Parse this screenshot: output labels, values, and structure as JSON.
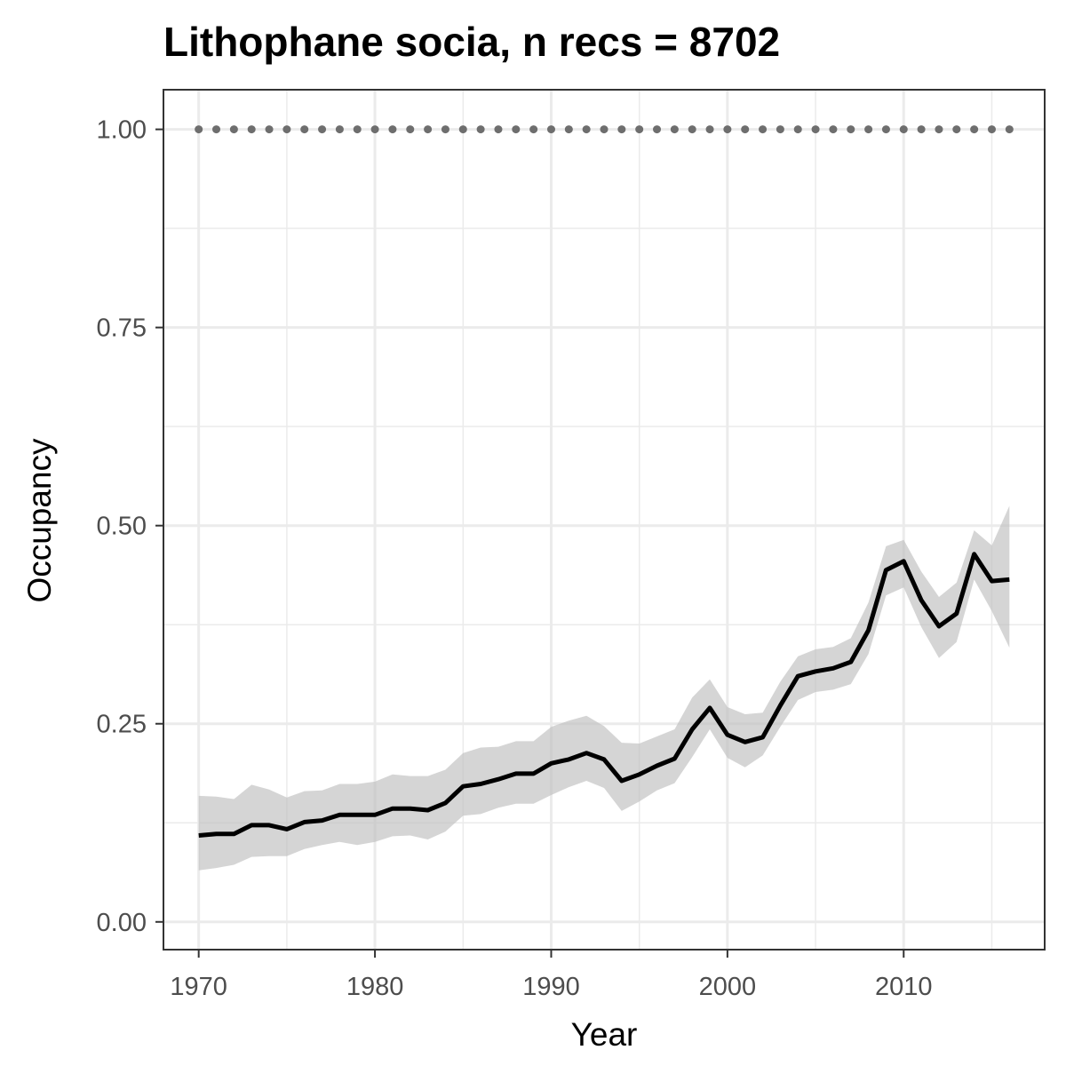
{
  "chart_data": {
    "type": "line",
    "title": "Lithophane socia, n recs = 8702",
    "xlabel": "Year",
    "ylabel": "Occupancy",
    "xlim": [
      1968,
      2018
    ],
    "ylim": [
      -0.035,
      1.05
    ],
    "x_ticks": [
      1970,
      1980,
      1990,
      2000,
      2010
    ],
    "x_tick_labels": [
      "1970",
      "1980",
      "1990",
      "2000",
      "2010"
    ],
    "y_ticks": [
      0,
      0.25,
      0.5,
      0.75,
      1.0
    ],
    "y_tick_labels": [
      "0.00",
      "0.25",
      "0.50",
      "0.75",
      "1.00"
    ],
    "grid": true,
    "legend": "none",
    "colors": {
      "line": "#000000",
      "ribbon": "#bebebe",
      "reference_points": "#6e6e6e",
      "grid": "#ebebeb",
      "panel_border": "#333333"
    },
    "series": [
      {
        "x": [
          1970,
          1971,
          1972,
          1973,
          1974,
          1975,
          1976,
          1977,
          1978,
          1979,
          1980,
          1981,
          1982,
          1983,
          1984,
          1985,
          1986,
          1987,
          1988,
          1989,
          1990,
          1991,
          1992,
          1993,
          1994,
          1995,
          1996,
          1997,
          1998,
          1999,
          2000,
          2001,
          2002,
          2003,
          2004,
          2005,
          2006,
          2007,
          2008,
          2009,
          2010,
          2011,
          2012,
          2013,
          2014,
          2015,
          2016
        ],
        "values": [
          0.109,
          0.111,
          0.111,
          0.122,
          0.122,
          0.117,
          0.126,
          0.128,
          0.135,
          0.135,
          0.135,
          0.143,
          0.143,
          0.141,
          0.15,
          0.171,
          0.174,
          0.18,
          0.187,
          0.187,
          0.2,
          0.205,
          0.213,
          0.205,
          0.178,
          0.186,
          0.197,
          0.206,
          0.243,
          0.27,
          0.236,
          0.227,
          0.233,
          0.273,
          0.31,
          0.316,
          0.32,
          0.328,
          0.368,
          0.444,
          0.455,
          0.406,
          0.373,
          0.389,
          0.464,
          0.43,
          0.432
        ],
        "lower": [
          0.065,
          0.068,
          0.072,
          0.082,
          0.083,
          0.083,
          0.092,
          0.097,
          0.101,
          0.097,
          0.101,
          0.108,
          0.109,
          0.104,
          0.114,
          0.134,
          0.136,
          0.144,
          0.149,
          0.149,
          0.16,
          0.17,
          0.178,
          0.169,
          0.14,
          0.152,
          0.166,
          0.175,
          0.208,
          0.243,
          0.207,
          0.195,
          0.21,
          0.246,
          0.28,
          0.29,
          0.293,
          0.3,
          0.338,
          0.412,
          0.422,
          0.372,
          0.333,
          0.353,
          0.432,
          0.392,
          0.346
        ],
        "upper": [
          0.159,
          0.158,
          0.155,
          0.173,
          0.167,
          0.157,
          0.165,
          0.166,
          0.174,
          0.174,
          0.177,
          0.186,
          0.184,
          0.184,
          0.192,
          0.213,
          0.22,
          0.221,
          0.228,
          0.228,
          0.246,
          0.254,
          0.26,
          0.247,
          0.226,
          0.225,
          0.234,
          0.243,
          0.283,
          0.306,
          0.271,
          0.262,
          0.264,
          0.303,
          0.335,
          0.344,
          0.347,
          0.358,
          0.403,
          0.474,
          0.482,
          0.442,
          0.41,
          0.428,
          0.494,
          0.475,
          0.525
        ]
      },
      {
        "x": [
          1970,
          1971,
          1972,
          1973,
          1974,
          1975,
          1976,
          1977,
          1978,
          1979,
          1980,
          1981,
          1982,
          1983,
          1984,
          1985,
          1986,
          1987,
          1988,
          1989,
          1990,
          1991,
          1992,
          1993,
          1994,
          1995,
          1996,
          1997,
          1998,
          1999,
          2000,
          2001,
          2002,
          2003,
          2004,
          2005,
          2006,
          2007,
          2008,
          2009,
          2010,
          2011,
          2012,
          2013,
          2014,
          2015,
          2016
        ],
        "values": [
          1,
          1,
          1,
          1,
          1,
          1,
          1,
          1,
          1,
          1,
          1,
          1,
          1,
          1,
          1,
          1,
          1,
          1,
          1,
          1,
          1,
          1,
          1,
          1,
          1,
          1,
          1,
          1,
          1,
          1,
          1,
          1,
          1,
          1,
          1,
          1,
          1,
          1,
          1,
          1,
          1,
          1,
          1,
          1,
          1,
          1,
          1
        ]
      }
    ]
  }
}
